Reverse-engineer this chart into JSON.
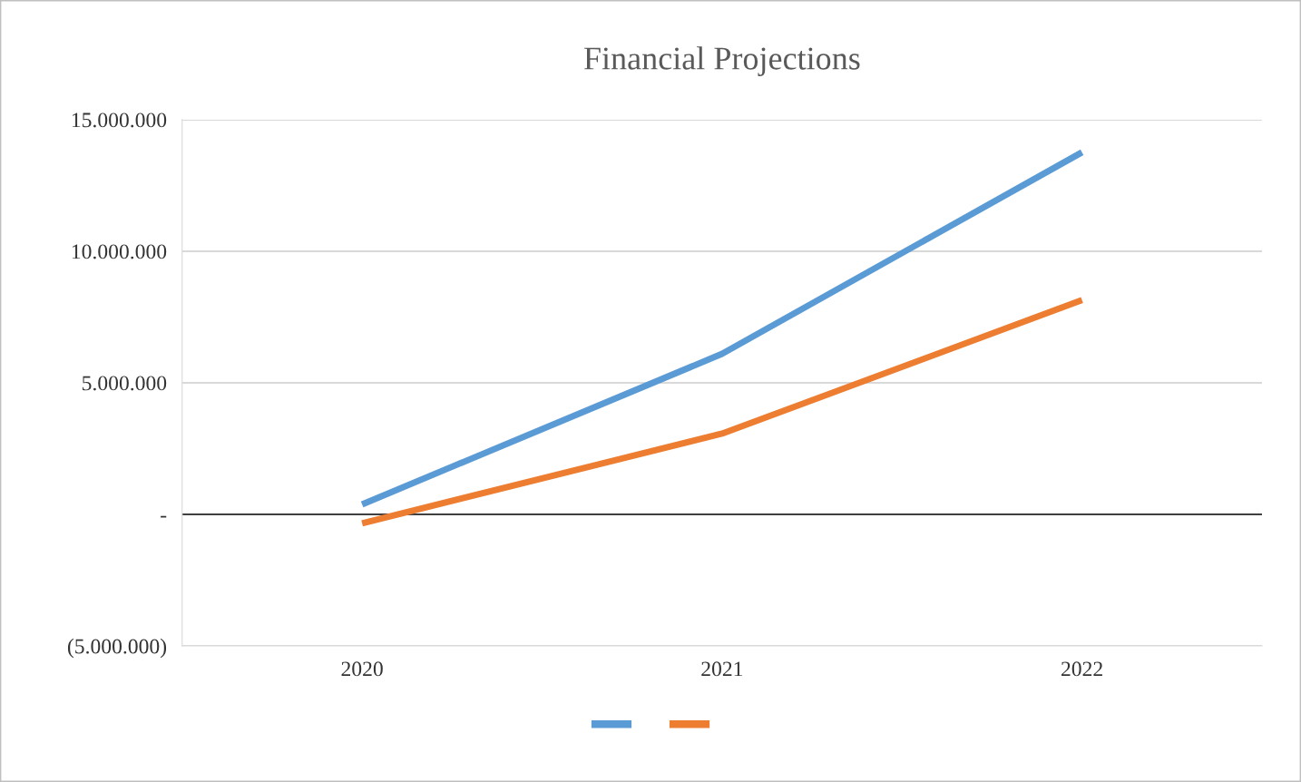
{
  "chart_data": {
    "type": "line",
    "title": "Financial Projections",
    "categories": [
      "2020",
      "2021",
      "2022"
    ],
    "series": [
      {
        "color": "#5b9bd5",
        "values": [
          380000,
          6100000,
          13760000
        ]
      },
      {
        "color": "#ed7d31",
        "values": [
          -340000,
          3070000,
          8140000
        ]
      }
    ],
    "ylim": [
      -5000000,
      15000000
    ],
    "yticks": [
      {
        "value": -5000000,
        "label": "(5.000.000)"
      },
      {
        "value": 0,
        "label": "-"
      },
      {
        "value": 5000000,
        "label": "5.000.000"
      },
      {
        "value": 10000000,
        "label": "10.000.000"
      },
      {
        "value": 15000000,
        "label": "15.000.000"
      }
    ],
    "ref_lines": [
      {
        "axis": "y",
        "value": 0,
        "color": "#404040"
      }
    ],
    "grid": "y",
    "marker": "none",
    "line_style": "solid"
  }
}
